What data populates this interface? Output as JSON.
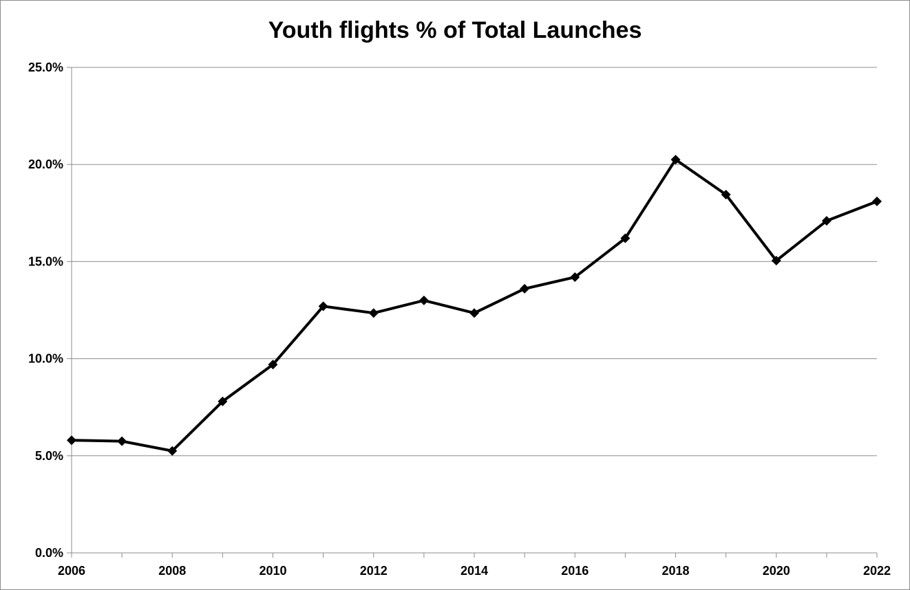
{
  "chart_data": {
    "type": "line",
    "title": "Youth flights % of Total Launches",
    "xlabel": "",
    "ylabel": "",
    "x": [
      2006,
      2007,
      2008,
      2009,
      2010,
      2011,
      2012,
      2013,
      2014,
      2015,
      2016,
      2017,
      2018,
      2019,
      2020,
      2021,
      2022
    ],
    "series": [
      {
        "values": [
          5.8,
          5.75,
          5.25,
          7.8,
          9.7,
          12.7,
          12.35,
          13.0,
          12.35,
          13.6,
          14.2,
          16.2,
          20.25,
          18.45,
          15.05,
          17.1,
          18.1
        ]
      }
    ],
    "xticks": [
      "2006",
      "2008",
      "2010",
      "2012",
      "2014",
      "2016",
      "2018",
      "2020",
      "2022"
    ],
    "yticks": [
      "0.0%",
      "5.0%",
      "10.0%",
      "15.0%",
      "20.0%",
      "25.0%"
    ],
    "ylim": [
      0,
      25
    ],
    "xlim": [
      2006,
      2022
    ],
    "grid": "horizontal",
    "legend": "none",
    "line_color": "#000000",
    "grid_color": "#8c8c8c",
    "marker": "diamond"
  }
}
